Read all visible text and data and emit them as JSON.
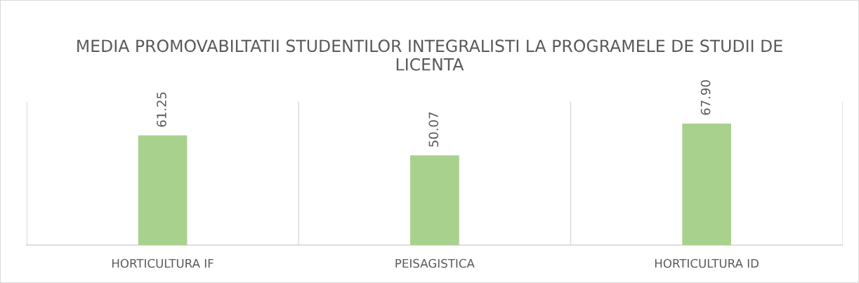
{
  "chart_data": {
    "type": "bar",
    "title": "MEDIA PROMOVABILTATII STUDENTILOR INTEGRALISTI LA PROGRAMELE DE STUDII DE LICENTA",
    "categories": [
      "HORTICULTURA IF",
      "PEISAGISTICA",
      "HORTICULTURA ID"
    ],
    "values": [
      61.25,
      50.07,
      67.9
    ],
    "value_labels": [
      "61.25",
      "50.07",
      "67.90"
    ],
    "color": "#a9d18e",
    "ylim": [
      0,
      80
    ],
    "tick_labels": "x",
    "grid": "x",
    "legend": false
  }
}
